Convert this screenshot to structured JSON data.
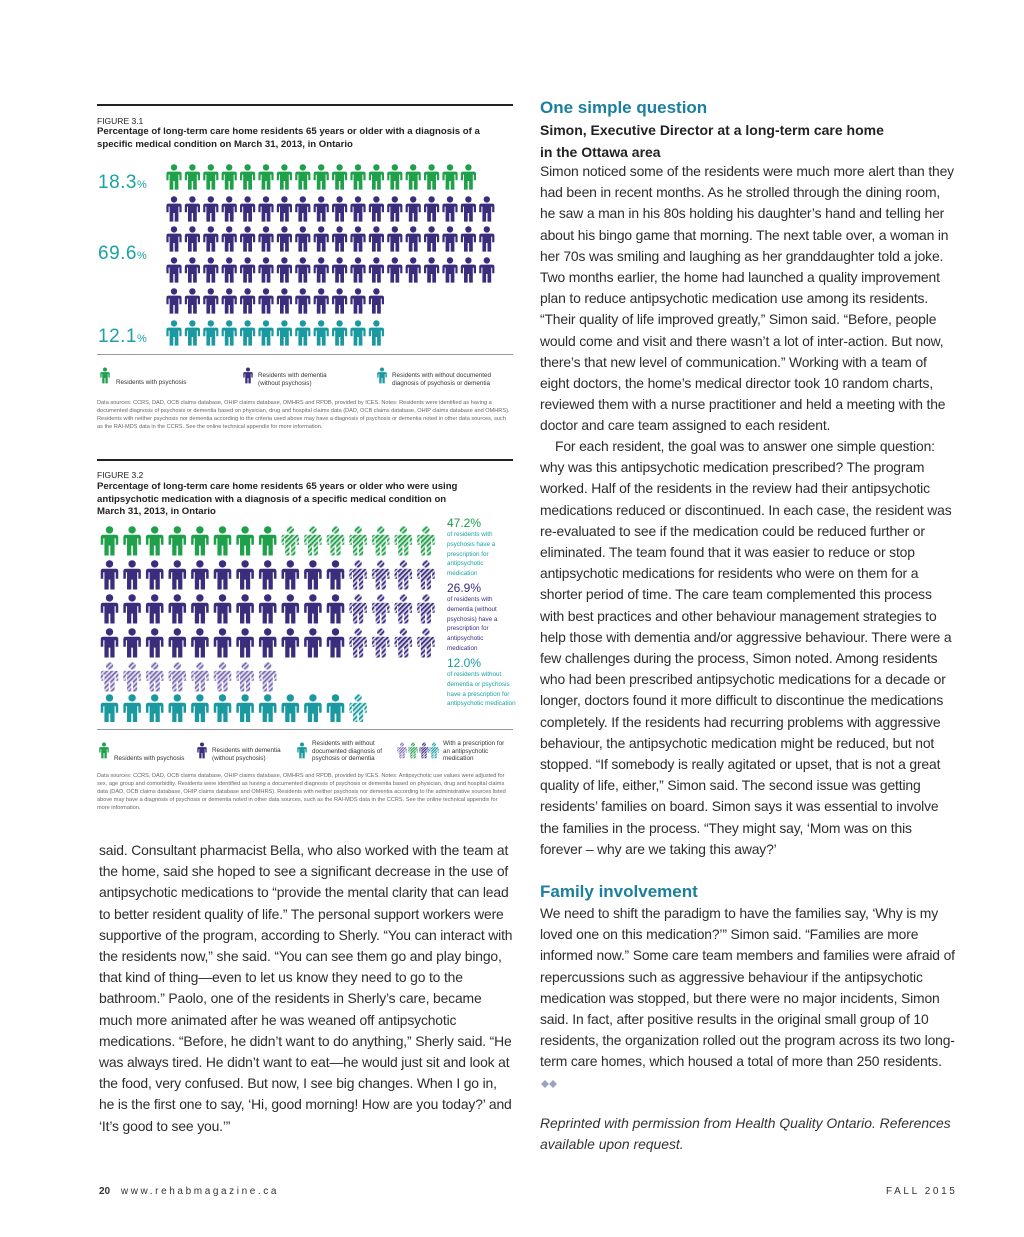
{
  "figure_1": {
    "label": "FIGURE 3.1",
    "title": "Percentage of long-term care home residents 65 years or older with a diagnosis of a specific medical condition on March 31, 2013, in Ontario",
    "stats": [
      {
        "value": "18.3",
        "unit": "%"
      },
      {
        "value": "69.6",
        "unit": "%"
      },
      {
        "value": "12.1",
        "unit": "%"
      }
    ],
    "legend": [
      "Residents with psychosis",
      "Residents with dementia (without psychosis)",
      "Residents with without documented diagnosis of psychosis or dementia"
    ],
    "source": "Data sources: CCRS, DAD, OCB claims database, OHIP claims database, OMHRS and RPDB, provided by ICES. Notes: Residents were identified as having a documented diagnosis of psychosis or dementia based on physician, drug and hospital claims data (DAD, OCB claims database, OHIP claims database and OMHRS). Residents with neither psychosis nor dementia according to the criteria used above may have a diagnosis of psychosis or dementia noted in other data sources, such as the RAI-MDS data in the CCRS. See the online technical appendix for more information."
  },
  "figure_2": {
    "label": "FIGURE 3.2",
    "title": "Percentage of long-term care home residents 65 years or older who were using antipsychotic medication with a diagnosis of a specific medical condition on March 31, 2013, in Ontario",
    "annotations": [
      {
        "value": "47.2%",
        "text": "of residents with psychosis have a prescription for antipsychotic medication"
      },
      {
        "value": "26.9%",
        "text": "of residents with dementia (without psychosis) have a prescription for antipsychotic medication"
      },
      {
        "value": "12.0%",
        "text": "of residents without dementia or psychosis have a prescription for antipsychotic medication"
      }
    ],
    "legend": [
      "Residents with psychosis",
      "Residents with dementia (without psychosis)",
      "Residents with without documented diagnosis of psychosis or dementia",
      "With a prescription for an antipsychotic medication"
    ],
    "source": "Data sources: CCRS, DAD, OCB claims database, OHIP claims database, OMHRS and RPDB, provided by ICES. Notes: Antipsychotic use values were adjusted for sex, age group and comorbidity. Residents were identified as having a documented diagnosis of psychosis or dementia based on physician, drug and hospital claims data (DAD, OCB claims database, OHIP claims database and OMHRS). Residents with neither psychosis nor dementia according to the administrative sources listed above may have a diagnosis of psychosis or dementia noted in other data sources, such as the RAI-MDS data in the CCRS. See the online technical appendix for more information."
  },
  "article": {
    "left_text": "said. Consultant pharmacist Bella, who also worked with the team at the home, said she hoped to see a significant decrease in the use of antipsychotic medications to “provide the mental clarity that can lead to better resident quality of life.” The personal support workers were supportive of the program, according to Sherly. “You can interact with the residents now,” she said. “You can see them go and play bingo, that kind of thing—even to let us know they need to go to the bathroom.” Paolo, one of the residents in Sherly’s care, became much more animated after he was weaned off antipsychotic medications. “Before, he didn’t want to do anything,” Sherly said. “He was always tired. He didn’t want to eat—he would just sit and look at the food, very confused. But now, I see big changes. When I go in, he is the first one to say, ‘Hi, good morning! How are you today?’ and ‘It’s good to see you.’”",
    "heading_1": "One simple question",
    "subheading": "Simon, Executive Director at a long-term care home in the Ottawa area",
    "paragraphs_1": [
      "Simon noticed some of the residents were much more alert than they had been in recent months. As he strolled through the dining room, he saw a man in his 80s holding his daughter’s hand and telling her about his bingo game that morning. The next table over, a woman in her 70s was smiling and laughing as her granddaughter told a joke. Two months earlier, the home had launched a quality improvement plan to reduce antipsychotic medication use among its residents. “Their quality of life improved greatly,” Simon said. “Before, people would come and visit and there wasn’t a lot of inter-action. But now, there’s that new level of communication.” Working with a team of eight doctors, the home’s medical director took 10 random charts, reviewed them with a nurse practitioner and held a meeting with the doctor and care team assigned to each resident.",
      "For each resident, the goal was to answer one simple question: why was this antipsychotic medication prescribed? The program worked. Half of the residents in the review had their antipsychotic medications reduced or discontinued. In each case, the resident was re-evaluated to see if the medication could be reduced further or eliminated. The team found that it was easier to reduce or stop antipsychotic medications for residents who were on them for a shorter period of time. The care team complemented this process with best practices and other behaviour management strategies to help those with dementia and/or aggressive behaviour. There were a few challenges during the process, Simon noted. Among residents who had been prescribed antipsychotic medications for a decade or longer, doctors found it more difficult to discontinue the medications completely. If the residents had recurring problems with aggressive behaviour, the antipsychotic medication might be reduced, but not stopped. “If somebody is really agitated or upset, that is not a great quality of life, either,” Simon said. The second issue was getting residents’ families on board. Simon says it was essential to involve the families in the process. “They might say, ‘Mom was on this forever – why are we taking this away?’"
    ],
    "heading_2": "Family involvement",
    "paragraph_2": "We need to shift the paradigm to have the families say, ‘Why is my loved one on this medication?’” Simon said. “Families are more informed now.” Some care team members and families were afraid of repercussions such as aggressive behaviour if the antipsychotic medication was stopped, but there were no major incidents, Simon said. In fact, after positive results in the original small group of 10 residents, the organization rolled out the program across its two long-term care homes, which housed a total of more than 250 residents.",
    "credit": "Reprinted with permission from Health Quality Ontario. References available upon request."
  },
  "footer": {
    "page_number": "20",
    "url": "www.rehabmagazine.ca",
    "issue": "FALL 2015"
  }
}
